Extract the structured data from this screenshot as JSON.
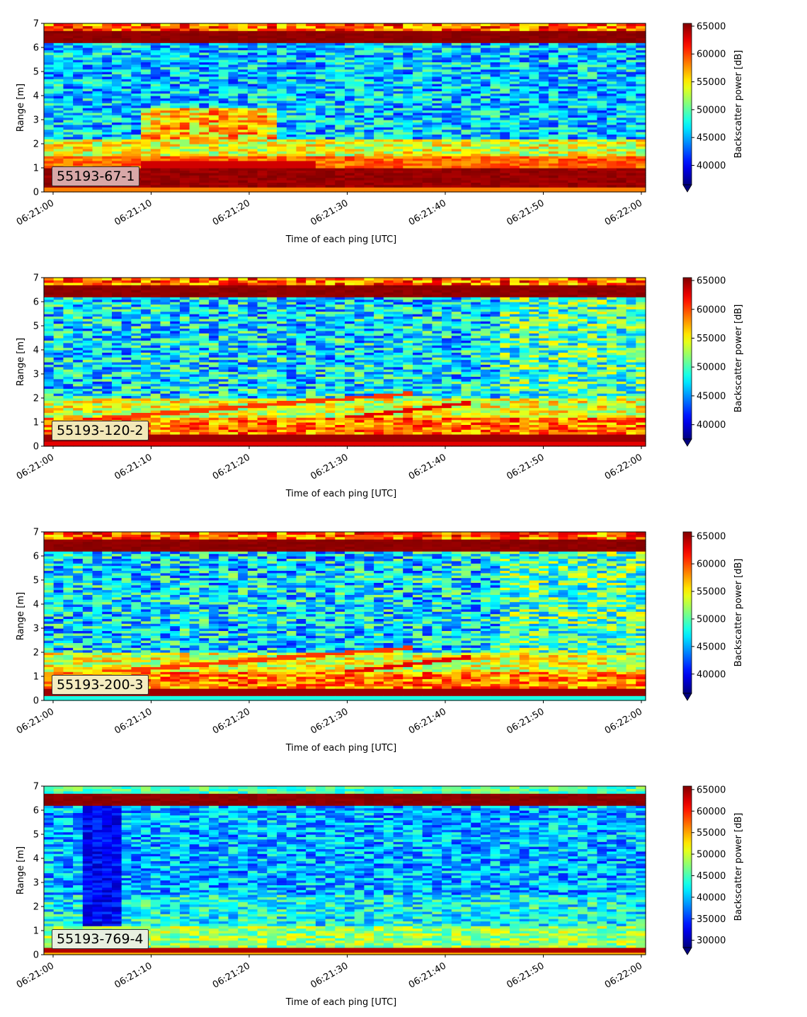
{
  "figure": {
    "xlabel": "Time of each ping [UTC]",
    "ylabel": "Range [m]",
    "colorbar_label": "Backscatter power [dB]",
    "colormap": "jet"
  },
  "chart_data": [
    {
      "type": "heatmap",
      "label": "55193-67-1",
      "label_box_color": "#d8a8a8",
      "x_ticks": [
        "06:21:00",
        "06:21:10",
        "06:21:20",
        "06:21:30",
        "06:21:40",
        "06:21:50",
        "06:22:00"
      ],
      "y_ticks": [
        0,
        1,
        2,
        3,
        4,
        5,
        6,
        7
      ],
      "ylim": [
        0,
        7
      ],
      "clim": [
        36500,
        65500
      ],
      "colorbar_ticks": [
        40000,
        45000,
        50000,
        55000,
        60000,
        65000
      ],
      "colorbar_extend": "min"
    },
    {
      "type": "heatmap",
      "label": "55193-120-2",
      "label_box_color": "#f2e8b8",
      "x_ticks": [
        "06:21:00",
        "06:21:10",
        "06:21:20",
        "06:21:30",
        "06:21:40",
        "06:21:50",
        "06:22:00"
      ],
      "y_ticks": [
        0,
        1,
        2,
        3,
        4,
        5,
        6,
        7
      ],
      "ylim": [
        0,
        7
      ],
      "clim": [
        37500,
        65500
      ],
      "colorbar_ticks": [
        40000,
        45000,
        50000,
        55000,
        60000,
        65000
      ],
      "colorbar_extend": "min"
    },
    {
      "type": "heatmap",
      "label": "55193-200-3",
      "label_box_color": "#f4ecc0",
      "x_ticks": [
        "06:21:00",
        "06:21:10",
        "06:21:20",
        "06:21:30",
        "06:21:40",
        "06:21:50",
        "06:22:00"
      ],
      "y_ticks": [
        0,
        1,
        2,
        3,
        4,
        5,
        6,
        7
      ],
      "ylim": [
        0,
        7
      ],
      "clim": [
        36500,
        65800
      ],
      "colorbar_ticks": [
        40000,
        45000,
        50000,
        55000,
        60000,
        65000
      ],
      "colorbar_extend": "min"
    },
    {
      "type": "heatmap",
      "label": "55193-769-4",
      "label_box_color": "#e8f0e0",
      "x_ticks": [
        "06:21:00",
        "06:21:10",
        "06:21:20",
        "06:21:30",
        "06:21:40",
        "06:21:50",
        "06:22:00"
      ],
      "y_ticks": [
        0,
        1,
        2,
        3,
        4,
        5,
        6,
        7
      ],
      "ylim": [
        0,
        7
      ],
      "clim": [
        28300,
        65800
      ],
      "colorbar_ticks": [
        30000,
        35000,
        40000,
        45000,
        50000,
        55000,
        60000,
        65000
      ],
      "colorbar_extend": "min"
    }
  ]
}
